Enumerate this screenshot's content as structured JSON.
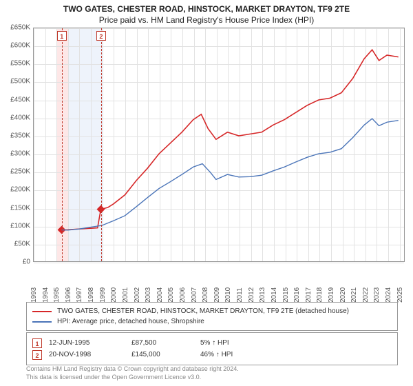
{
  "title_line1": "TWO GATES, CHESTER ROAD, HINSTOCK, MARKET DRAYTON, TF9 2TE",
  "title_line2": "Price paid vs. HM Land Registry's House Price Index (HPI)",
  "chart": {
    "type": "line",
    "xlim": [
      1993,
      2025.5
    ],
    "ylim": [
      0,
      650000
    ],
    "ytick_step": 50000,
    "y_ticks": [
      "£0",
      "£50K",
      "£100K",
      "£150K",
      "£200K",
      "£250K",
      "£300K",
      "£350K",
      "£400K",
      "£450K",
      "£500K",
      "£550K",
      "£600K",
      "£650K"
    ],
    "x_ticks": [
      1993,
      1994,
      1995,
      1996,
      1997,
      1998,
      1999,
      2000,
      2001,
      2002,
      2003,
      2004,
      2005,
      2006,
      2007,
      2008,
      2009,
      2010,
      2011,
      2012,
      2013,
      2014,
      2015,
      2016,
      2017,
      2018,
      2019,
      2020,
      2021,
      2022,
      2023,
      2024,
      2025
    ],
    "bands": [
      {
        "start": 1995.0,
        "end": 1996.0,
        "color": "#fde7e7"
      },
      {
        "start": 1996.0,
        "end": 1999.0,
        "color": "#eef3fb"
      }
    ],
    "band_lines": [
      1995.45,
      1998.89
    ],
    "badges": [
      {
        "x": 1995.45,
        "label": "1"
      },
      {
        "x": 1998.89,
        "label": "2"
      }
    ],
    "series": [
      {
        "name": "property_price",
        "color": "#d62728",
        "width": 1.6,
        "points": [
          [
            1995.45,
            87500
          ],
          [
            1996,
            88000
          ],
          [
            1997,
            90000
          ],
          [
            1998,
            92000
          ],
          [
            1998.6,
            93000
          ],
          [
            1998.89,
            145000
          ],
          [
            1999.5,
            150000
          ],
          [
            2000,
            160000
          ],
          [
            2001,
            185000
          ],
          [
            2002,
            225000
          ],
          [
            2003,
            260000
          ],
          [
            2004,
            300000
          ],
          [
            2005,
            330000
          ],
          [
            2006,
            360000
          ],
          [
            2007,
            395000
          ],
          [
            2007.7,
            410000
          ],
          [
            2008.3,
            370000
          ],
          [
            2009,
            340000
          ],
          [
            2010,
            360000
          ],
          [
            2011,
            350000
          ],
          [
            2012,
            355000
          ],
          [
            2013,
            360000
          ],
          [
            2014,
            380000
          ],
          [
            2015,
            395000
          ],
          [
            2016,
            415000
          ],
          [
            2017,
            435000
          ],
          [
            2018,
            450000
          ],
          [
            2019,
            455000
          ],
          [
            2020,
            470000
          ],
          [
            2021,
            510000
          ],
          [
            2022,
            565000
          ],
          [
            2022.7,
            590000
          ],
          [
            2023.3,
            560000
          ],
          [
            2024,
            575000
          ],
          [
            2025,
            570000
          ]
        ],
        "markers": [
          {
            "x": 1995.45,
            "y": 87500
          },
          {
            "x": 1998.89,
            "y": 145000
          }
        ],
        "marker_style": "diamond",
        "marker_size": 6,
        "marker_color": "#d62728"
      },
      {
        "name": "hpi_shropshire_detached",
        "color": "#4a74b8",
        "width": 1.4,
        "points": [
          [
            1995.45,
            87500
          ],
          [
            1996,
            87000
          ],
          [
            1997,
            90000
          ],
          [
            1998,
            95000
          ],
          [
            1999,
            100000
          ],
          [
            2000,
            113000
          ],
          [
            2001,
            127000
          ],
          [
            2002,
            152000
          ],
          [
            2003,
            178000
          ],
          [
            2004,
            203000
          ],
          [
            2005,
            222000
          ],
          [
            2006,
            242000
          ],
          [
            2007,
            263000
          ],
          [
            2007.8,
            272000
          ],
          [
            2008.5,
            248000
          ],
          [
            2009,
            228000
          ],
          [
            2010,
            242000
          ],
          [
            2011,
            235000
          ],
          [
            2012,
            236000
          ],
          [
            2013,
            240000
          ],
          [
            2014,
            252000
          ],
          [
            2015,
            263000
          ],
          [
            2016,
            277000
          ],
          [
            2017,
            290000
          ],
          [
            2018,
            300000
          ],
          [
            2019,
            304000
          ],
          [
            2020,
            314000
          ],
          [
            2021,
            345000
          ],
          [
            2022,
            380000
          ],
          [
            2022.7,
            398000
          ],
          [
            2023.3,
            378000
          ],
          [
            2024,
            388000
          ],
          [
            2025,
            393000
          ]
        ]
      }
    ],
    "background_color": "#ffffff",
    "grid_color": "#e2e2e2",
    "axis_fontsize": 10
  },
  "legend": {
    "items": [
      {
        "color": "#d62728",
        "label": "TWO GATES, CHESTER ROAD, HINSTOCK, MARKET DRAYTON, TF9 2TE (detached house)"
      },
      {
        "color": "#4a74b8",
        "label": "HPI: Average price, detached house, Shropshire"
      }
    ]
  },
  "transactions": [
    {
      "badge": "1",
      "date": "12-JUN-1995",
      "price": "£87,500",
      "pct": "5% ↑ HPI"
    },
    {
      "badge": "2",
      "date": "20-NOV-1998",
      "price": "£145,000",
      "pct": "46% ↑ HPI"
    }
  ],
  "footer_line1": "Contains HM Land Registry data © Crown copyright and database right 2024.",
  "footer_line2": "This data is licensed under the Open Government Licence v3.0."
}
